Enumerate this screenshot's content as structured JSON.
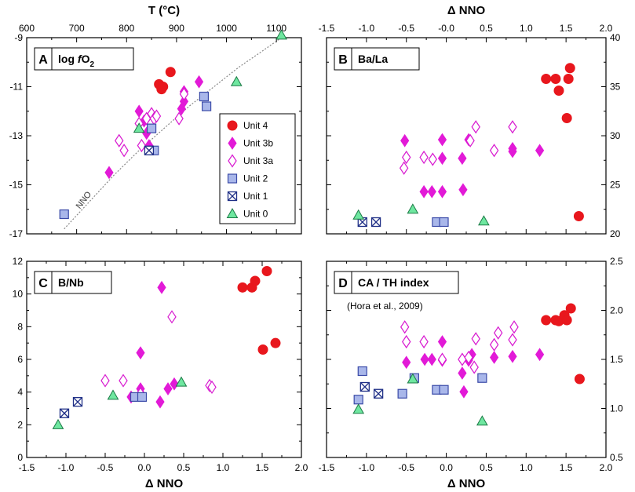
{
  "colors": {
    "unit4": "#e8171d",
    "unit3b": "#e21ad7",
    "unit3a_stroke": "#d81ad0",
    "unit2_fill": "#a9b7ea",
    "unit2_stroke": "#3b4ba8",
    "unit1_stroke": "#1f2f86",
    "unit0_fill": "#6fe7a0",
    "unit0_stroke": "#1a7a45"
  },
  "legend": {
    "entries": [
      {
        "key": "unit4",
        "label": "Unit 4",
        "marker": "circle"
      },
      {
        "key": "unit3b",
        "label": "Unit 3b",
        "marker": "diamond-filled"
      },
      {
        "key": "unit3a",
        "label": "Unit 3a",
        "marker": "diamond-open"
      },
      {
        "key": "unit2",
        "label": "Unit 2",
        "marker": "square"
      },
      {
        "key": "unit1",
        "label": "Unit 1",
        "marker": "square-x"
      },
      {
        "key": "unit0",
        "label": "Unit 0",
        "marker": "triangle"
      }
    ]
  },
  "chart_data": [
    {
      "id": "A",
      "type": "scatter",
      "letter": "A",
      "title": "log fO2",
      "title_parts": [
        "log ",
        "f",
        "O",
        "2"
      ],
      "xlabel": "T (°C)",
      "xlim": [
        600,
        1150
      ],
      "ylim": [
        -17,
        -9
      ],
      "x_ticks": [
        600,
        700,
        800,
        900,
        1000,
        1100
      ],
      "y_ticks": [
        -17,
        -15,
        -13,
        -11,
        -9
      ],
      "reference_line": {
        "label": "NNO",
        "x": [
          675,
          725,
          775,
          825,
          875,
          925,
          975,
          1025,
          1075,
          1110
        ],
        "y": [
          -16.8,
          -15.7,
          -14.6,
          -13.6,
          -12.7,
          -11.8,
          -11.0,
          -10.2,
          -9.5,
          -9.0
        ]
      },
      "series": [
        {
          "name": "Unit 4",
          "key": "unit4",
          "x": [
            865,
            870,
            888,
            873
          ],
          "y": [
            -10.9,
            -11.1,
            -10.4,
            -11.0
          ]
        },
        {
          "name": "Unit 3b",
          "key": "unit3b",
          "x": [
            765,
            825,
            835,
            840,
            845,
            910,
            915,
            915,
            945
          ],
          "y": [
            -14.5,
            -12.0,
            -12.4,
            -12.9,
            -13.4,
            -11.9,
            -11.2,
            -11.6,
            -10.8
          ]
        },
        {
          "name": "Unit 3a",
          "key": "unit3a",
          "x": [
            785,
            795,
            825,
            830,
            840,
            850,
            855,
            860,
            905,
            915
          ],
          "y": [
            -13.2,
            -13.6,
            -12.5,
            -13.4,
            -12.3,
            -12.1,
            -12.3,
            -12.2,
            -12.3,
            -11.3
          ]
        },
        {
          "name": "Unit 2",
          "key": "unit2",
          "x": [
            675,
            850,
            855,
            955,
            960
          ],
          "y": [
            -16.2,
            -12.7,
            -13.6,
            -11.4,
            -11.8
          ]
        },
        {
          "name": "Unit 1",
          "key": "unit1",
          "x": [
            845
          ],
          "y": [
            -13.6
          ]
        },
        {
          "name": "Unit 0",
          "key": "unit0",
          "x": [
            825,
            1020,
            1110
          ],
          "y": [
            -12.7,
            -10.8,
            -8.9
          ]
        }
      ]
    },
    {
      "id": "B",
      "type": "scatter",
      "letter": "B",
      "title": "Ba/La",
      "xlabel": "Δ NNO",
      "xlim": [
        -1.5,
        2.0
      ],
      "ylim": [
        20,
        40
      ],
      "x_ticks": [
        -1.5,
        -1.0,
        -0.5,
        0.0,
        0.5,
        1.0,
        1.5,
        2.0
      ],
      "x_tick_labels": [
        "-1.5",
        "-1.0",
        "-0.5",
        "-0.0",
        "0.5",
        "1.0",
        "1.5",
        "2.0"
      ],
      "y_ticks": [
        20,
        25,
        30,
        35,
        40
      ],
      "series": [
        {
          "name": "Unit 4",
          "key": "unit4",
          "x": [
            1.25,
            1.37,
            1.41,
            1.51,
            1.53,
            1.55,
            1.66
          ],
          "y": [
            35.8,
            35.8,
            34.6,
            31.8,
            35.8,
            36.9,
            21.8
          ]
        },
        {
          "name": "Unit 3b",
          "key": "unit3b",
          "x": [
            -0.52,
            -0.28,
            -0.18,
            -0.05,
            -0.05,
            -0.05,
            0.2,
            0.21,
            0.28,
            0.83,
            0.83,
            1.17
          ],
          "y": [
            29.5,
            24.3,
            24.3,
            29.6,
            27.7,
            24.3,
            27.7,
            24.5,
            29.6,
            28.7,
            28.4,
            28.5
          ]
        },
        {
          "name": "Unit 3a",
          "key": "unit3a",
          "x": [
            -0.53,
            -0.5,
            -0.28,
            -0.17,
            0.3,
            0.37,
            0.6,
            0.83
          ],
          "y": [
            26.7,
            27.8,
            27.8,
            27.6,
            29.5,
            30.9,
            28.5,
            30.9
          ]
        },
        {
          "name": "Unit 2",
          "key": "unit2",
          "x": [
            -0.12,
            -0.03
          ],
          "y": [
            21.2,
            21.2
          ]
        },
        {
          "name": "Unit 1",
          "key": "unit1",
          "x": [
            -1.05,
            -0.88
          ],
          "y": [
            21.2,
            21.2
          ]
        },
        {
          "name": "Unit 0",
          "key": "unit0",
          "x": [
            -1.1,
            -0.42,
            0.47
          ],
          "y": [
            21.9,
            22.5,
            21.3
          ]
        }
      ]
    },
    {
      "id": "C",
      "type": "scatter",
      "letter": "C",
      "title": "B/Nb",
      "xlabel": "Δ NNO",
      "xlim": [
        -1.5,
        2.0
      ],
      "ylim": [
        0,
        12
      ],
      "x_ticks": [
        -1.5,
        -1.0,
        -0.5,
        0.0,
        0.5,
        1.0,
        1.5,
        2.0
      ],
      "x_tick_labels": [
        "-1.5",
        "-1.0",
        "-0.5",
        "0.0",
        "0.5",
        "1.0",
        "1.5",
        "2.0"
      ],
      "y_ticks": [
        0,
        2,
        4,
        6,
        8,
        10,
        12
      ],
      "series": [
        {
          "name": "Unit 4",
          "key": "unit4",
          "x": [
            1.25,
            1.37,
            1.41,
            1.51,
            1.56,
            1.67
          ],
          "y": [
            10.4,
            10.4,
            10.8,
            6.6,
            11.4,
            7.0
          ]
        },
        {
          "name": "Unit 3b",
          "key": "unit3b",
          "x": [
            -0.17,
            -0.05,
            -0.05,
            -0.03,
            0.2,
            0.22,
            0.3,
            0.38
          ],
          "y": [
            3.7,
            4.2,
            6.4,
            3.8,
            3.4,
            10.4,
            4.2,
            4.5
          ]
        },
        {
          "name": "Unit 3a",
          "key": "unit3a",
          "x": [
            -0.5,
            -0.27,
            -0.05,
            0.35,
            0.83,
            0.86
          ],
          "y": [
            4.7,
            4.7,
            3.9,
            8.6,
            4.4,
            4.3
          ]
        },
        {
          "name": "Unit 2",
          "key": "unit2",
          "x": [
            -0.12,
            -0.03
          ],
          "y": [
            3.7,
            3.7
          ]
        },
        {
          "name": "Unit 1",
          "key": "unit1",
          "x": [
            -1.02,
            -0.85
          ],
          "y": [
            2.7,
            3.4
          ]
        },
        {
          "name": "Unit 0",
          "key": "unit0",
          "x": [
            -1.1,
            -0.4,
            0.47
          ],
          "y": [
            2.0,
            3.8,
            4.6
          ]
        }
      ]
    },
    {
      "id": "D",
      "type": "scatter",
      "letter": "D",
      "title": "CA / TH index",
      "note": "(Hora et al., 2009)",
      "xlabel": "Δ NNO",
      "xlim": [
        -1.5,
        2.0
      ],
      "ylim": [
        0.5,
        2.5
      ],
      "x_ticks": [
        -1.5,
        -1.0,
        -0.5,
        0.0,
        0.5,
        1.0,
        1.5,
        2.0
      ],
      "x_tick_labels": [
        "-1.5",
        "-1.0",
        "-0.5",
        "0.0",
        "0.5",
        "1.0",
        "1.5",
        "2.0"
      ],
      "y_ticks": [
        0.5,
        1.0,
        1.5,
        2.0,
        2.5
      ],
      "y_tick_labels": [
        "0.5",
        "1.0",
        "1.5",
        "2.0",
        "2.5"
      ],
      "series": [
        {
          "name": "Unit 4",
          "key": "unit4",
          "x": [
            1.25,
            1.37,
            1.41,
            1.48,
            1.51,
            1.56,
            1.67
          ],
          "y": [
            1.9,
            1.9,
            1.89,
            1.95,
            1.9,
            2.02,
            1.3
          ]
        },
        {
          "name": "Unit 3b",
          "key": "unit3b",
          "x": [
            -0.5,
            -0.27,
            -0.18,
            -0.05,
            -0.05,
            0.2,
            0.22,
            0.28,
            0.32,
            0.6,
            0.83,
            1.17
          ],
          "y": [
            1.47,
            1.5,
            1.5,
            1.68,
            1.49,
            1.36,
            1.17,
            1.49,
            1.55,
            1.52,
            1.53,
            1.55
          ]
        },
        {
          "name": "Unit 3a",
          "key": "unit3a",
          "x": [
            -0.52,
            -0.5,
            -0.28,
            -0.05,
            0.2,
            0.28,
            0.35,
            0.37,
            0.6,
            0.65,
            0.83,
            0.85
          ],
          "y": [
            1.83,
            1.68,
            1.68,
            1.5,
            1.5,
            1.52,
            1.42,
            1.71,
            1.65,
            1.77,
            1.7,
            1.83
          ]
        },
        {
          "name": "Unit 2",
          "key": "unit2",
          "x": [
            -1.1,
            -1.05,
            -0.55,
            -0.4,
            -0.12,
            -0.03,
            0.45
          ],
          "y": [
            1.09,
            1.38,
            1.15,
            1.31,
            1.19,
            1.19,
            1.31
          ]
        },
        {
          "name": "Unit 1",
          "key": "unit1",
          "x": [
            -1.02,
            -0.85
          ],
          "y": [
            1.22,
            1.15
          ]
        },
        {
          "name": "Unit 0",
          "key": "unit0",
          "x": [
            -1.1,
            -0.42,
            0.45
          ],
          "y": [
            0.99,
            1.3,
            0.87
          ]
        }
      ]
    }
  ]
}
